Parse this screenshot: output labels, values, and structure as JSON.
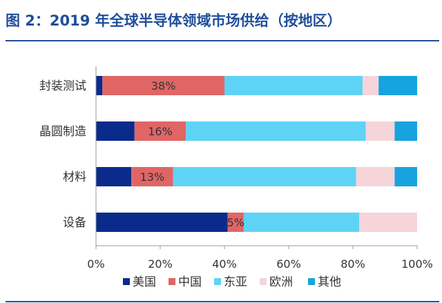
{
  "title": "图 2：2019 年全球半导体领域市场供给（按地区）",
  "chart_data": {
    "type": "bar",
    "orientation": "horizontal",
    "stacked": true,
    "categories": [
      "封装测试",
      "晶圆制造",
      "材料",
      "设备"
    ],
    "series": [
      {
        "name": "美国",
        "color": "#0a2b8c",
        "values": [
          2,
          12,
          11,
          41
        ]
      },
      {
        "name": "中国",
        "color": "#e06666",
        "values": [
          38,
          16,
          13,
          5
        ]
      },
      {
        "name": "东亚",
        "color": "#5fd3f5",
        "values": [
          43,
          56,
          57,
          36
        ]
      },
      {
        "name": "欧洲",
        "color": "#f5d5da",
        "values": [
          5,
          9,
          12,
          18
        ]
      },
      {
        "name": "其他",
        "color": "#17a3dd",
        "values": [
          12,
          7,
          7,
          0
        ]
      }
    ],
    "data_labels": [
      {
        "category": "封装测试",
        "series": "中国",
        "text": "38%"
      },
      {
        "category": "晶圆制造",
        "series": "中国",
        "text": "16%"
      },
      {
        "category": "材料",
        "series": "中国",
        "text": "13%"
      },
      {
        "category": "设备",
        "series": "中国",
        "text": "5%"
      }
    ],
    "x_ticks": [
      "0%",
      "20%",
      "40%",
      "60%",
      "80%",
      "100%"
    ],
    "xlim": [
      0,
      100
    ],
    "grid": false,
    "legend_position": "bottom"
  }
}
